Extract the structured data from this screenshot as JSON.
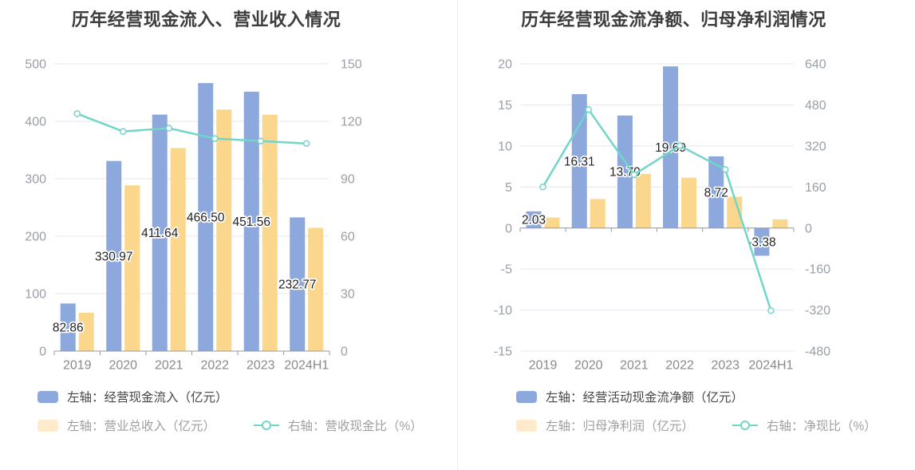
{
  "colors": {
    "series-blue": "#8ca8dc",
    "series-orange": "#fbd68d",
    "series-teal": "#72d5ca",
    "legend-pale": "#ffeacb",
    "grid": "#e2e7f2",
    "axis": "#9a9a9a",
    "tick": "#999fa8",
    "cat": "#8a8a8a",
    "vlabel": "#222222",
    "title": "#3d3d3d",
    "legend-text-1": "#474747",
    "legend-text-2": "#a0a0a0",
    "divider": "#ececec",
    "background": "#ffffff"
  },
  "chart_data": [
    {
      "type": "bar",
      "subtype": "dual-axis bar + line",
      "title": "历年经营现金流入、营业收入情况",
      "categories": [
        "2019",
        "2020",
        "2021",
        "2022",
        "2023",
        "2024H1"
      ],
      "left_axis": {
        "min": 0,
        "max": 500,
        "ticks": [
          "500",
          "400",
          "300",
          "200",
          "100",
          "0"
        ]
      },
      "right_axis": {
        "min": 0,
        "max": 150,
        "ticks": [
          "150",
          "120",
          "90",
          "60",
          "30",
          "0"
        ]
      },
      "grid": true,
      "legend_position": "bottom-left",
      "series": [
        {
          "name": "左轴：经营现金流入（亿元）",
          "type": "bar",
          "axis": "left",
          "color": "#8ca8dc",
          "values": [
            82.86,
            330.97,
            411.64,
            466.5,
            451.56,
            232.77
          ],
          "labels": [
            "82.86",
            "330.97",
            "411.64",
            "466.50",
            "451.56",
            "232.77"
          ]
        },
        {
          "name": "左轴：营业总收入（亿元）",
          "type": "bar",
          "axis": "left",
          "color": "#fbd68d",
          "values": [
            66.8,
            288.5,
            353.5,
            420.5,
            411.5,
            214.5
          ]
        },
        {
          "name": "右轴：营收现金比（%）",
          "type": "line",
          "axis": "right",
          "color": "#72d5ca",
          "values": [
            124,
            114.7,
            116.4,
            111,
            109.7,
            108.4
          ]
        }
      ]
    },
    {
      "type": "bar",
      "subtype": "dual-axis bar + line",
      "title": "历年经营现金流净额、归母净利润情况",
      "categories": [
        "2019",
        "2020",
        "2021",
        "2022",
        "2023",
        "2024H1"
      ],
      "left_axis": {
        "min": -15,
        "max": 20,
        "ticks": [
          "20",
          "15",
          "10",
          "5",
          "0",
          "-5",
          "-10",
          "-15"
        ]
      },
      "right_axis": {
        "min": -480,
        "max": 640,
        "ticks": [
          "640",
          "480",
          "320",
          "160",
          "0",
          "-160",
          "-320",
          "-480"
        ]
      },
      "grid": true,
      "legend_position": "bottom-left",
      "series": [
        {
          "name": "左轴：经营活动现金流净额（亿元）",
          "type": "bar",
          "axis": "left",
          "color": "#8ca8dc",
          "values": [
            2.03,
            16.31,
            13.7,
            19.69,
            8.72,
            -3.38
          ],
          "labels": [
            "2.03",
            "16.31",
            "13.70",
            "19.69",
            "8.72",
            "-3.38"
          ]
        },
        {
          "name": "左轴：归母净利润（亿元）",
          "type": "bar",
          "axis": "left",
          "color": "#fbd68d",
          "values": [
            1.27,
            3.53,
            6.59,
            6.13,
            3.82,
            1.05
          ]
        },
        {
          "name": "右轴：净现比（%）",
          "type": "line",
          "axis": "right",
          "color": "#72d5ca",
          "values": [
            160,
            462,
            208,
            321,
            228,
            -322
          ]
        }
      ]
    }
  ]
}
